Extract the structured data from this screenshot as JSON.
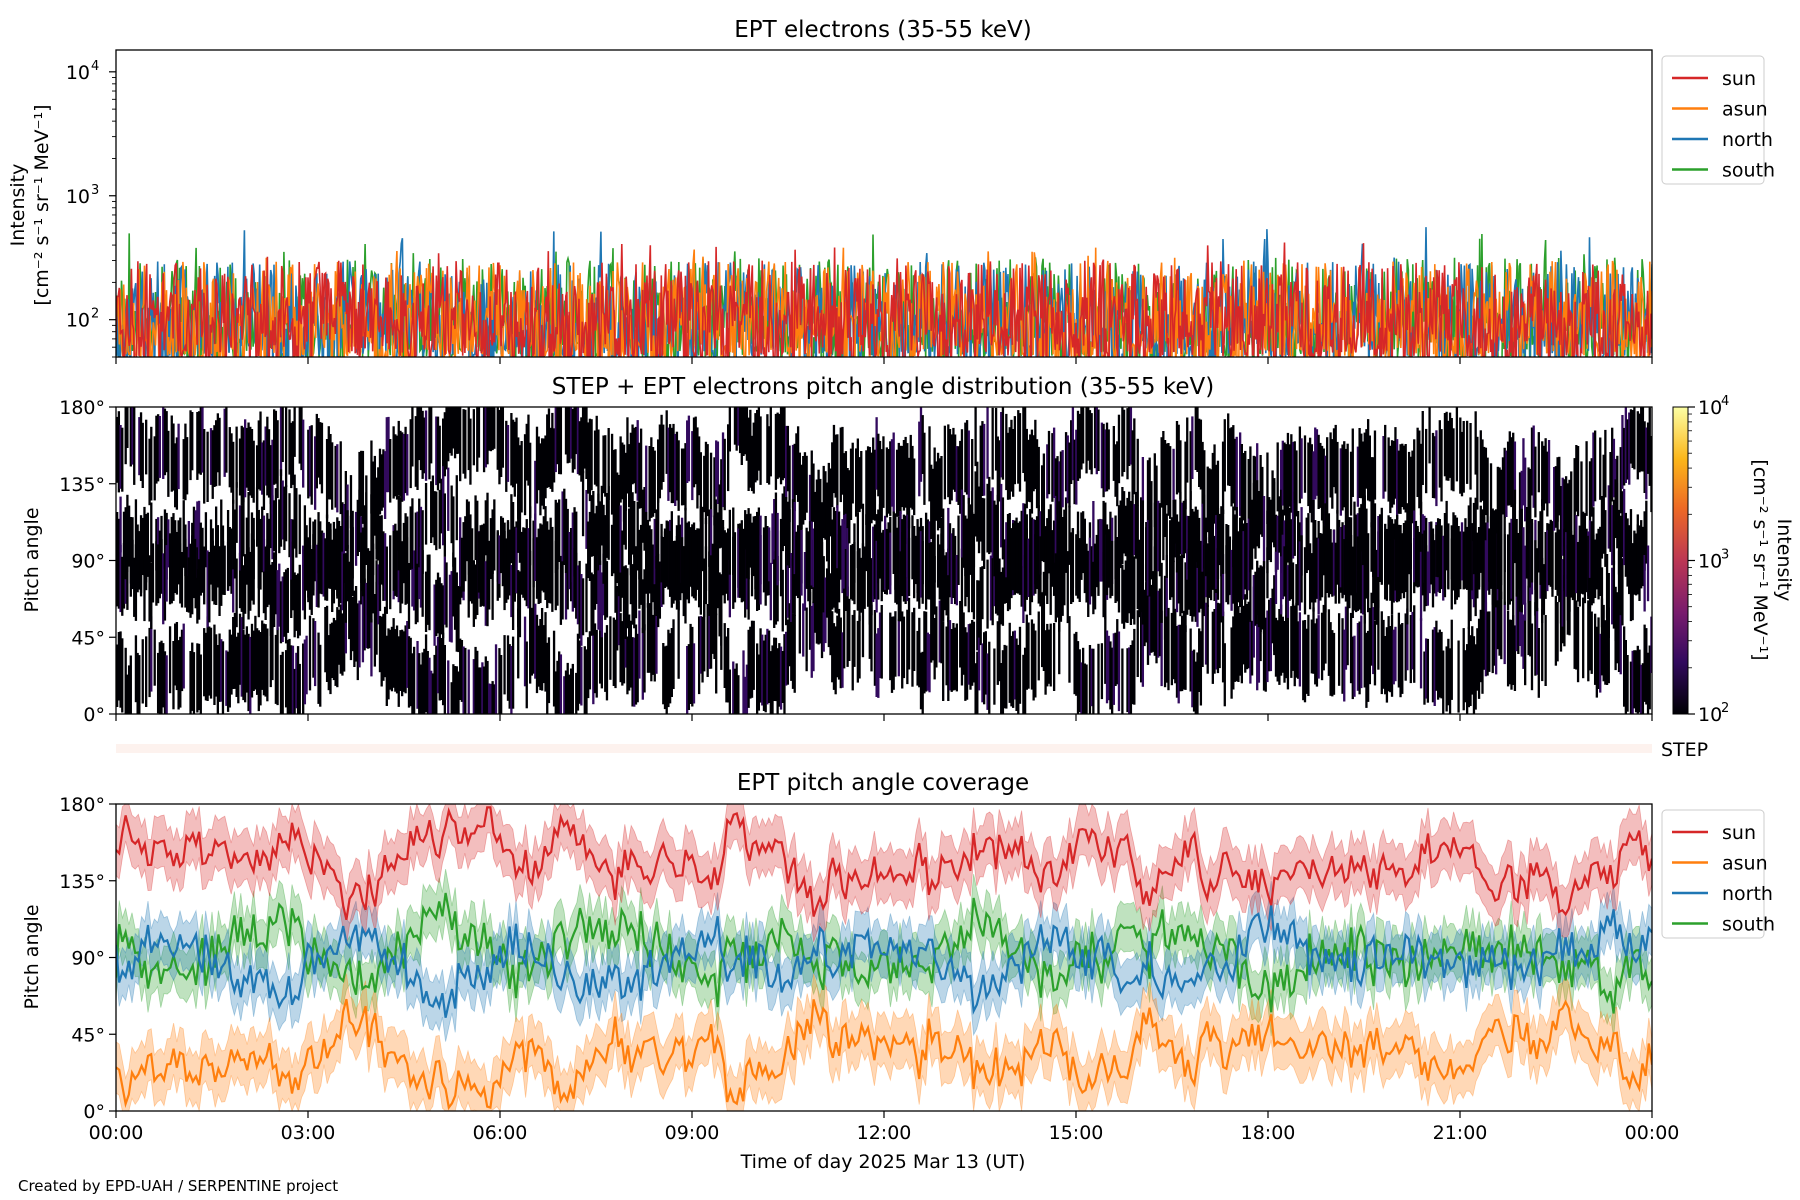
{
  "figure": {
    "credit": "Created by EPD-UAH / SERPENTINE project",
    "xlabel": "Time of day 2025 Mar 13 (UT)",
    "x_ticks": [
      "00:00",
      "03:00",
      "06:00",
      "09:00",
      "12:00",
      "15:00",
      "18:00",
      "21:00",
      "00:00"
    ]
  },
  "colors": {
    "sun": "#d62728",
    "asun": "#ff7f0e",
    "north": "#1f77b4",
    "south": "#2ca02c",
    "step_bar": "#fdf2ee"
  },
  "chart_data": [
    {
      "type": "line",
      "title": "EPT electrons (35-55 keV)",
      "ylabel_line1": "Intensity",
      "ylabel_line2": "[cm⁻² s⁻¹ sr⁻¹ MeV⁻¹]",
      "yscale": "log",
      "ylim": [
        50,
        15000
      ],
      "xlim_hours": [
        0,
        24
      ],
      "y_ticks": [
        {
          "value": 100,
          "base": "10",
          "exp": "2"
        },
        {
          "value": 1000,
          "base": "10",
          "exp": "3"
        },
        {
          "value": 10000,
          "base": "10",
          "exp": "4"
        }
      ],
      "legend": {
        "placement": "outside-right-top",
        "entries": [
          "sun",
          "asun",
          "north",
          "south"
        ]
      },
      "series": [
        {
          "name": "sun",
          "typical_range": [
            50,
            300
          ],
          "max": 420
        },
        {
          "name": "asun",
          "typical_range": [
            50,
            300
          ],
          "max": 450
        },
        {
          "name": "north",
          "typical_range": [
            50,
            300
          ],
          "max": 560
        },
        {
          "name": "south",
          "typical_range": [
            50,
            320
          ],
          "max": 560
        }
      ]
    },
    {
      "type": "heatmap",
      "title": "STEP + EPT electrons pitch angle distribution (35-55 keV)",
      "ylabel": "Pitch angle",
      "ylim": [
        0,
        180
      ],
      "y_ticks": [
        "0°",
        "45°",
        "90°",
        "135°",
        "180°"
      ],
      "colorbar": {
        "label_line1": "Intensity",
        "label_line2": "[cm⁻² s⁻¹ sr⁻¹ MeV⁻¹]",
        "scale": "log",
        "range": [
          100,
          10000
        ],
        "ticks": [
          {
            "value": 100,
            "base": "10",
            "exp": "2"
          },
          {
            "value": 1000,
            "base": "10",
            "exp": "3"
          },
          {
            "value": 10000,
            "base": "10",
            "exp": "4"
          }
        ],
        "colormap": [
          "#000004",
          "#320a5e",
          "#781c6d",
          "#bc3754",
          "#ed6925",
          "#fbb61a",
          "#fcffa4"
        ]
      },
      "step_label": "STEP"
    },
    {
      "type": "line",
      "title": "EPT pitch angle coverage",
      "ylabel": "Pitch angle",
      "ylim": [
        0,
        180
      ],
      "y_ticks": [
        "0°",
        "45°",
        "90°",
        "135°",
        "180°"
      ],
      "legend": {
        "placement": "outside-right-top",
        "entries": [
          "sun",
          "asun",
          "north",
          "south"
        ]
      },
      "series": [
        {
          "name": "sun",
          "mean": 150,
          "band_halfwidth": 15
        },
        {
          "name": "asun",
          "mean": 28,
          "band_halfwidth": 15
        },
        {
          "name": "north",
          "mean": 85,
          "band_halfwidth": 14
        },
        {
          "name": "south",
          "mean": 95,
          "band_halfwidth": 14
        }
      ]
    }
  ]
}
